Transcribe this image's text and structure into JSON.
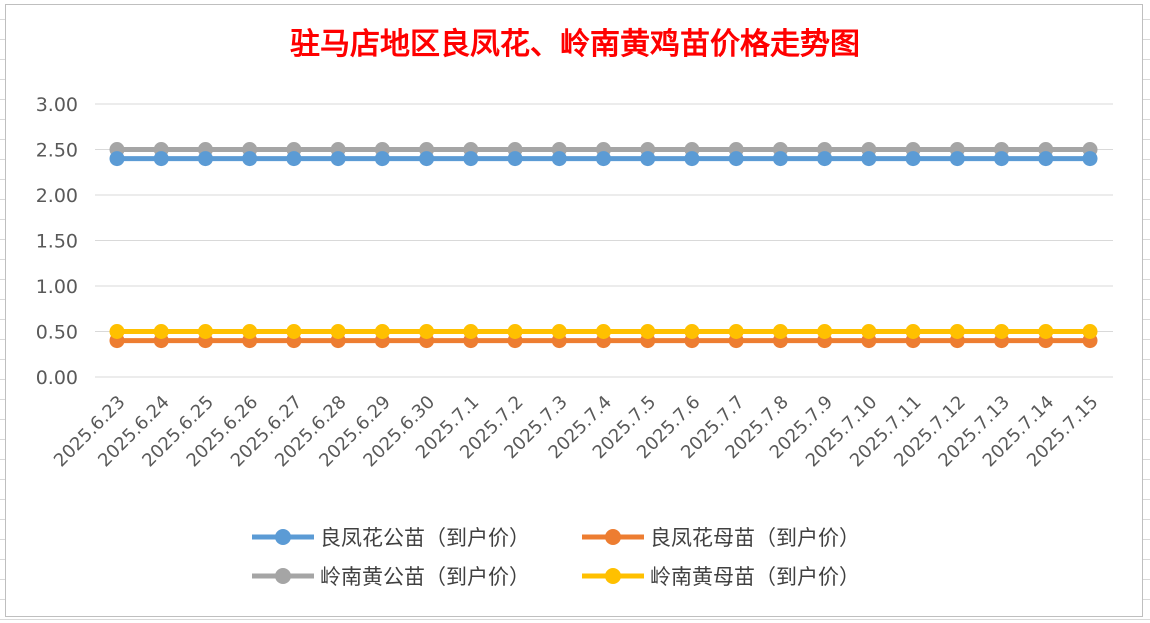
{
  "chart_data": {
    "type": "line",
    "title": "驻马店地区良凤花、岭南黄鸡苗价格走势图",
    "xlabel": "",
    "ylabel": "",
    "ylim": [
      0,
      3
    ],
    "yticks": [
      "0.00",
      "0.50",
      "1.00",
      "1.50",
      "2.00",
      "2.50",
      "3.00"
    ],
    "grid": true,
    "legend_position": "bottom",
    "categories": [
      "2025.6.23",
      "2025.6.24",
      "2025.6.25",
      "2025.6.26",
      "2025.6.27",
      "2025.6.28",
      "2025.6.29",
      "2025.6.30",
      "2025.7.1",
      "2025.7.2",
      "2025.7.3",
      "2025.7.4",
      "2025.7.5",
      "2025.7.6",
      "2025.7.7",
      "2025.7.8",
      "2025.7.9",
      "2025.7.10",
      "2025.7.11",
      "2025.7.12",
      "2025.7.13",
      "2025.7.14",
      "2025.7.15"
    ],
    "series": [
      {
        "name": "良凤花公苗（到户价）",
        "color": "#5b9bd5",
        "values": [
          2.4,
          2.4,
          2.4,
          2.4,
          2.4,
          2.4,
          2.4,
          2.4,
          2.4,
          2.4,
          2.4,
          2.4,
          2.4,
          2.4,
          2.4,
          2.4,
          2.4,
          2.4,
          2.4,
          2.4,
          2.4,
          2.4,
          2.4
        ]
      },
      {
        "name": "良凤花母苗（到户价）",
        "color": "#ed7d31",
        "values": [
          0.4,
          0.4,
          0.4,
          0.4,
          0.4,
          0.4,
          0.4,
          0.4,
          0.4,
          0.4,
          0.4,
          0.4,
          0.4,
          0.4,
          0.4,
          0.4,
          0.4,
          0.4,
          0.4,
          0.4,
          0.4,
          0.4,
          0.4
        ]
      },
      {
        "name": "岭南黄公苗（到户价）",
        "color": "#a5a5a5",
        "values": [
          2.5,
          2.5,
          2.5,
          2.5,
          2.5,
          2.5,
          2.5,
          2.5,
          2.5,
          2.5,
          2.5,
          2.5,
          2.5,
          2.5,
          2.5,
          2.5,
          2.5,
          2.5,
          2.5,
          2.5,
          2.5,
          2.5,
          2.5
        ]
      },
      {
        "name": "岭南黄母苗（到户价）",
        "color": "#ffc000",
        "values": [
          0.5,
          0.5,
          0.5,
          0.5,
          0.5,
          0.5,
          0.5,
          0.5,
          0.5,
          0.5,
          0.5,
          0.5,
          0.5,
          0.5,
          0.5,
          0.5,
          0.5,
          0.5,
          0.5,
          0.5,
          0.5,
          0.5,
          0.5
        ]
      }
    ]
  }
}
